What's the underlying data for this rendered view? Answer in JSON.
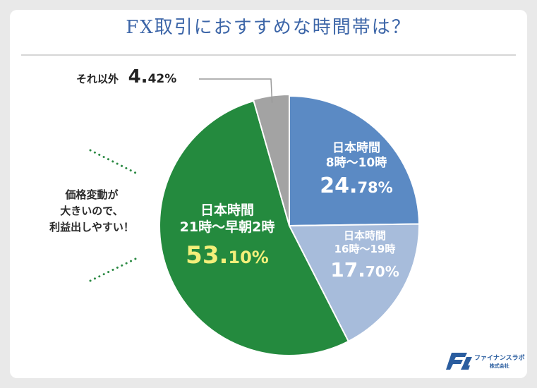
{
  "title": "FX取引におすすめな時間帯は？",
  "note": [
    "価格変動が",
    "大きいので、",
    "利益出しやすい！"
  ],
  "colors": {
    "title": "#3d66a8",
    "green": "#248a3e",
    "blue": "#5b8ac4",
    "light_blue": "#a7bcdb",
    "gray": "#a3a3a3",
    "highlight": "#f3ef7a",
    "dots": "#2c8a44"
  },
  "chart_data": {
    "type": "pie",
    "slices": [
      {
        "id": "s8",
        "line1": "日本時間",
        "line2": "8時〜10時",
        "value": 24.78,
        "pct_int": "24.",
        "pct_dec": "78%",
        "color": "#5b8ac4"
      },
      {
        "id": "s16",
        "line1": "日本時間",
        "line2": "16時〜19時",
        "value": 17.7,
        "pct_int": "17.",
        "pct_dec": "70%",
        "color": "#a7bcdb"
      },
      {
        "id": "s21",
        "line1": "日本時間",
        "line2": "21時〜早朝2時",
        "value": 53.1,
        "pct_int": "53.",
        "pct_dec": "10%",
        "color": "#248a3e"
      },
      {
        "id": "other",
        "line1": "それ以外",
        "line2": "",
        "value": 4.42,
        "pct_int": "4.",
        "pct_dec": "42%",
        "color": "#a3a3a3"
      }
    ]
  },
  "logo": {
    "name": "ファイナンスラボ",
    "sub": "株式会社"
  }
}
